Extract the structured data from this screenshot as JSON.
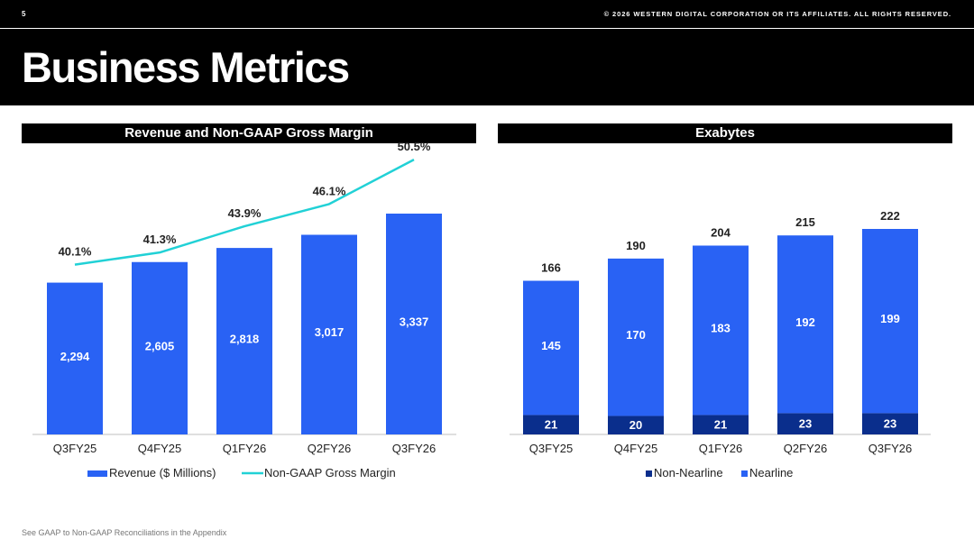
{
  "header": {
    "page_number": "5",
    "copyright": "© 2026 WESTERN DIGITAL CORPORATION OR ITS AFFILIATES. ALL RIGHTS RESERVED.",
    "title": "Business Metrics"
  },
  "colors": {
    "bar_blue": "#2962F4",
    "dark_navy": "#0A2E8C",
    "margin_line": "#21D1D6",
    "axis": "#BFBFBF"
  },
  "chart_data": [
    {
      "type": "bar",
      "title": "Revenue and Non-GAAP Gross Margin",
      "categories": [
        "Q3FY25",
        "Q4FY25",
        "Q1FY26",
        "Q2FY26",
        "Q3FY26"
      ],
      "series": [
        {
          "name": "Revenue ($ Millions)",
          "type": "bar",
          "values": [
            2294,
            2605,
            2818,
            3017,
            3337
          ],
          "labels": [
            "2,294",
            "2,605",
            "2,818",
            "3,017",
            "3,337"
          ],
          "color": "#2962F4"
        },
        {
          "name": "Non-GAAP Gross Margin",
          "type": "line",
          "values": [
            40.1,
            41.3,
            43.9,
            46.1,
            50.5
          ],
          "labels": [
            "40.1%",
            "41.3%",
            "43.9%",
            "46.1%",
            "50.5%"
          ],
          "color": "#21D1D6"
        }
      ],
      "legend_position": "bottom",
      "grid": false
    },
    {
      "type": "bar",
      "stacked": true,
      "title": "Exabytes",
      "categories": [
        "Q3FY25",
        "Q4FY25",
        "Q1FY26",
        "Q2FY26",
        "Q3FY26"
      ],
      "series": [
        {
          "name": "Non-Nearline",
          "values": [
            21,
            20,
            21,
            23,
            23
          ],
          "labels": [
            "21",
            "20",
            "21",
            "23",
            "23"
          ],
          "color": "#0A2E8C"
        },
        {
          "name": "Nearline",
          "values": [
            145,
            170,
            183,
            192,
            199
          ],
          "labels": [
            "145",
            "170",
            "183",
            "192",
            "199"
          ],
          "color": "#2962F4"
        }
      ],
      "totals": [
        166,
        190,
        204,
        215,
        222
      ],
      "total_labels": [
        "166",
        "190",
        "204",
        "215",
        "222"
      ],
      "legend_position": "bottom",
      "grid": false
    }
  ],
  "footnote": "See GAAP to Non-GAAP Reconciliations in the Appendix"
}
